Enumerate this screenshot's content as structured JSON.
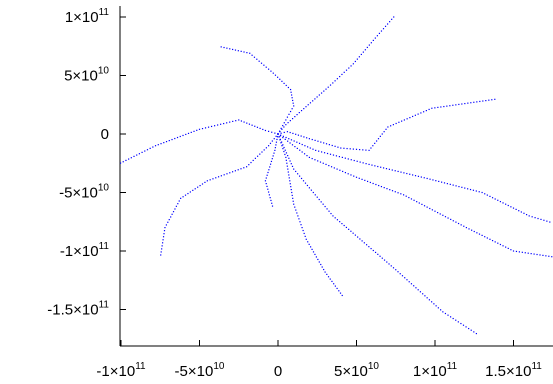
{
  "chart_data": {
    "type": "scatter",
    "title": "",
    "xlabel": "",
    "ylabel": "",
    "grid": false,
    "legend": "none",
    "marker_color": "#0000ff",
    "xlim": [
      -102000000000,
      175000000000
    ],
    "ylim": [
      -178000000000,
      102000000000
    ],
    "x_ticks": [
      {
        "value": -100000000000,
        "mantissa": "-1",
        "exp": "11"
      },
      {
        "value": -50000000000,
        "mantissa": "-5",
        "exp": "10"
      },
      {
        "value": 0,
        "mantissa": "0",
        "exp": ""
      },
      {
        "value": 50000000000,
        "mantissa": "5",
        "exp": "10"
      },
      {
        "value": 100000000000,
        "mantissa": "1",
        "exp": "11"
      },
      {
        "value": 150000000000,
        "mantissa": "1.5",
        "exp": "11"
      }
    ],
    "y_ticks": [
      {
        "value": 100000000000,
        "mantissa": "1",
        "exp": "11"
      },
      {
        "value": 50000000000,
        "mantissa": "5",
        "exp": "10"
      },
      {
        "value": 0,
        "mantissa": "0",
        "exp": ""
      },
      {
        "value": -50000000000,
        "mantissa": "-5",
        "exp": "10"
      },
      {
        "value": -100000000000,
        "mantissa": "-1",
        "exp": "11"
      },
      {
        "value": -150000000000,
        "mantissa": "-1.5",
        "exp": "11"
      }
    ],
    "tick_times_label": "×10",
    "series": [
      {
        "values": [
          [
            0,
            0
          ],
          [
            5000000000,
            8000000000
          ],
          [
            15000000000,
            20000000000
          ],
          [
            32000000000,
            40000000000
          ],
          [
            48000000000,
            60000000000
          ],
          [
            62000000000,
            82000000000
          ],
          [
            75000000000,
            102000000000
          ]
        ]
      },
      {
        "values": [
          [
            0,
            0
          ],
          [
            6000000000,
            2000000000
          ],
          [
            20000000000,
            -4000000000
          ],
          [
            40000000000,
            -12000000000
          ],
          [
            58000000000,
            -14000000000
          ],
          [
            64000000000,
            -4000000000
          ],
          [
            70000000000,
            6000000000
          ],
          [
            84000000000,
            14000000000
          ],
          [
            98000000000,
            22000000000
          ],
          [
            140000000000,
            30000000000
          ]
        ]
      },
      {
        "values": [
          [
            0,
            0
          ],
          [
            5000000000,
            12000000000
          ],
          [
            10000000000,
            24000000000
          ],
          [
            8000000000,
            38000000000
          ],
          [
            -3000000000,
            52000000000
          ],
          [
            -18000000000,
            69000000000
          ],
          [
            -38000000000,
            75000000000
          ]
        ]
      },
      {
        "values": [
          [
            0,
            0
          ],
          [
            -8000000000,
            3000000000
          ],
          [
            -25000000000,
            12000000000
          ],
          [
            -50000000000,
            4000000000
          ],
          [
            -78000000000,
            -10000000000
          ],
          [
            -102000000000,
            -26000000000
          ]
        ]
      },
      {
        "values": [
          [
            0,
            0
          ],
          [
            -6000000000,
            -10000000000
          ],
          [
            -20000000000,
            -28000000000
          ],
          [
            -45000000000,
            -40000000000
          ],
          [
            -62000000000,
            -55000000000
          ],
          [
            -72000000000,
            -80000000000
          ],
          [
            -75000000000,
            -106000000000
          ]
        ]
      },
      {
        "values": [
          [
            0,
            0
          ],
          [
            -2000000000,
            -14000000000
          ],
          [
            -8000000000,
            -40000000000
          ],
          [
            -3000000000,
            -64000000000
          ]
        ]
      },
      {
        "values": [
          [
            0,
            0
          ],
          [
            5000000000,
            -20000000000
          ],
          [
            10000000000,
            -60000000000
          ],
          [
            18000000000,
            -90000000000
          ],
          [
            30000000000,
            -118000000000
          ],
          [
            42000000000,
            -140000000000
          ]
        ]
      },
      {
        "values": [
          [
            0,
            0
          ],
          [
            10000000000,
            -30000000000
          ],
          [
            35000000000,
            -70000000000
          ],
          [
            75000000000,
            -116000000000
          ],
          [
            105000000000,
            -152000000000
          ],
          [
            128000000000,
            -172000000000
          ]
        ]
      },
      {
        "values": [
          [
            0,
            0
          ],
          [
            20000000000,
            -20000000000
          ],
          [
            50000000000,
            -37000000000
          ],
          [
            80000000000,
            -52000000000
          ],
          [
            100000000000,
            -66000000000
          ],
          [
            120000000000,
            -80000000000
          ],
          [
            150000000000,
            -100000000000
          ],
          [
            180000000000,
            -106000000000
          ]
        ]
      },
      {
        "values": [
          [
            0,
            0
          ],
          [
            24000000000,
            -14000000000
          ],
          [
            58000000000,
            -26000000000
          ],
          [
            95000000000,
            -38000000000
          ],
          [
            130000000000,
            -50000000000
          ],
          [
            160000000000,
            -70000000000
          ],
          [
            175000000000,
            -76000000000
          ]
        ]
      }
    ]
  }
}
